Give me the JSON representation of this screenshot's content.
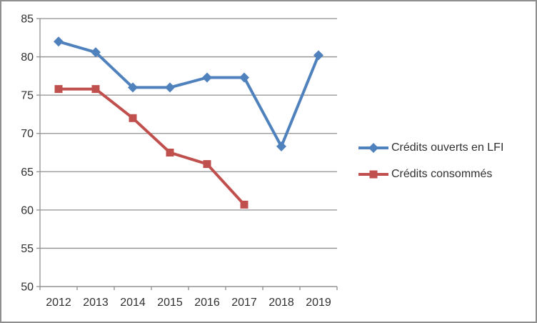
{
  "chart_data": {
    "type": "line",
    "title": "",
    "xlabel": "",
    "ylabel": "",
    "categories": [
      "2012",
      "2013",
      "2014",
      "2015",
      "2016",
      "2017",
      "2018",
      "2019"
    ],
    "series": [
      {
        "id": "lfi",
        "name": "Crédits ouverts en LFI",
        "color": "#4F81BD",
        "marker": "diamond",
        "values": [
          82.0,
          80.6,
          76.0,
          76.0,
          77.3,
          77.3,
          68.3,
          80.2
        ]
      },
      {
        "id": "consommes",
        "name": "Crédits consommés",
        "color": "#C0504D",
        "marker": "square",
        "values": [
          75.8,
          75.8,
          72.0,
          67.5,
          66.0,
          60.7,
          null,
          null
        ]
      }
    ],
    "ylim": [
      50,
      85
    ],
    "y_ticks": [
      50,
      55,
      60,
      65,
      70,
      75,
      80,
      85
    ],
    "grid": "horizontal",
    "gridline_color": "#8f8f8f",
    "axis_color": "#8f8f8f",
    "tick_label_color": "#303030",
    "legend_position": "right"
  }
}
